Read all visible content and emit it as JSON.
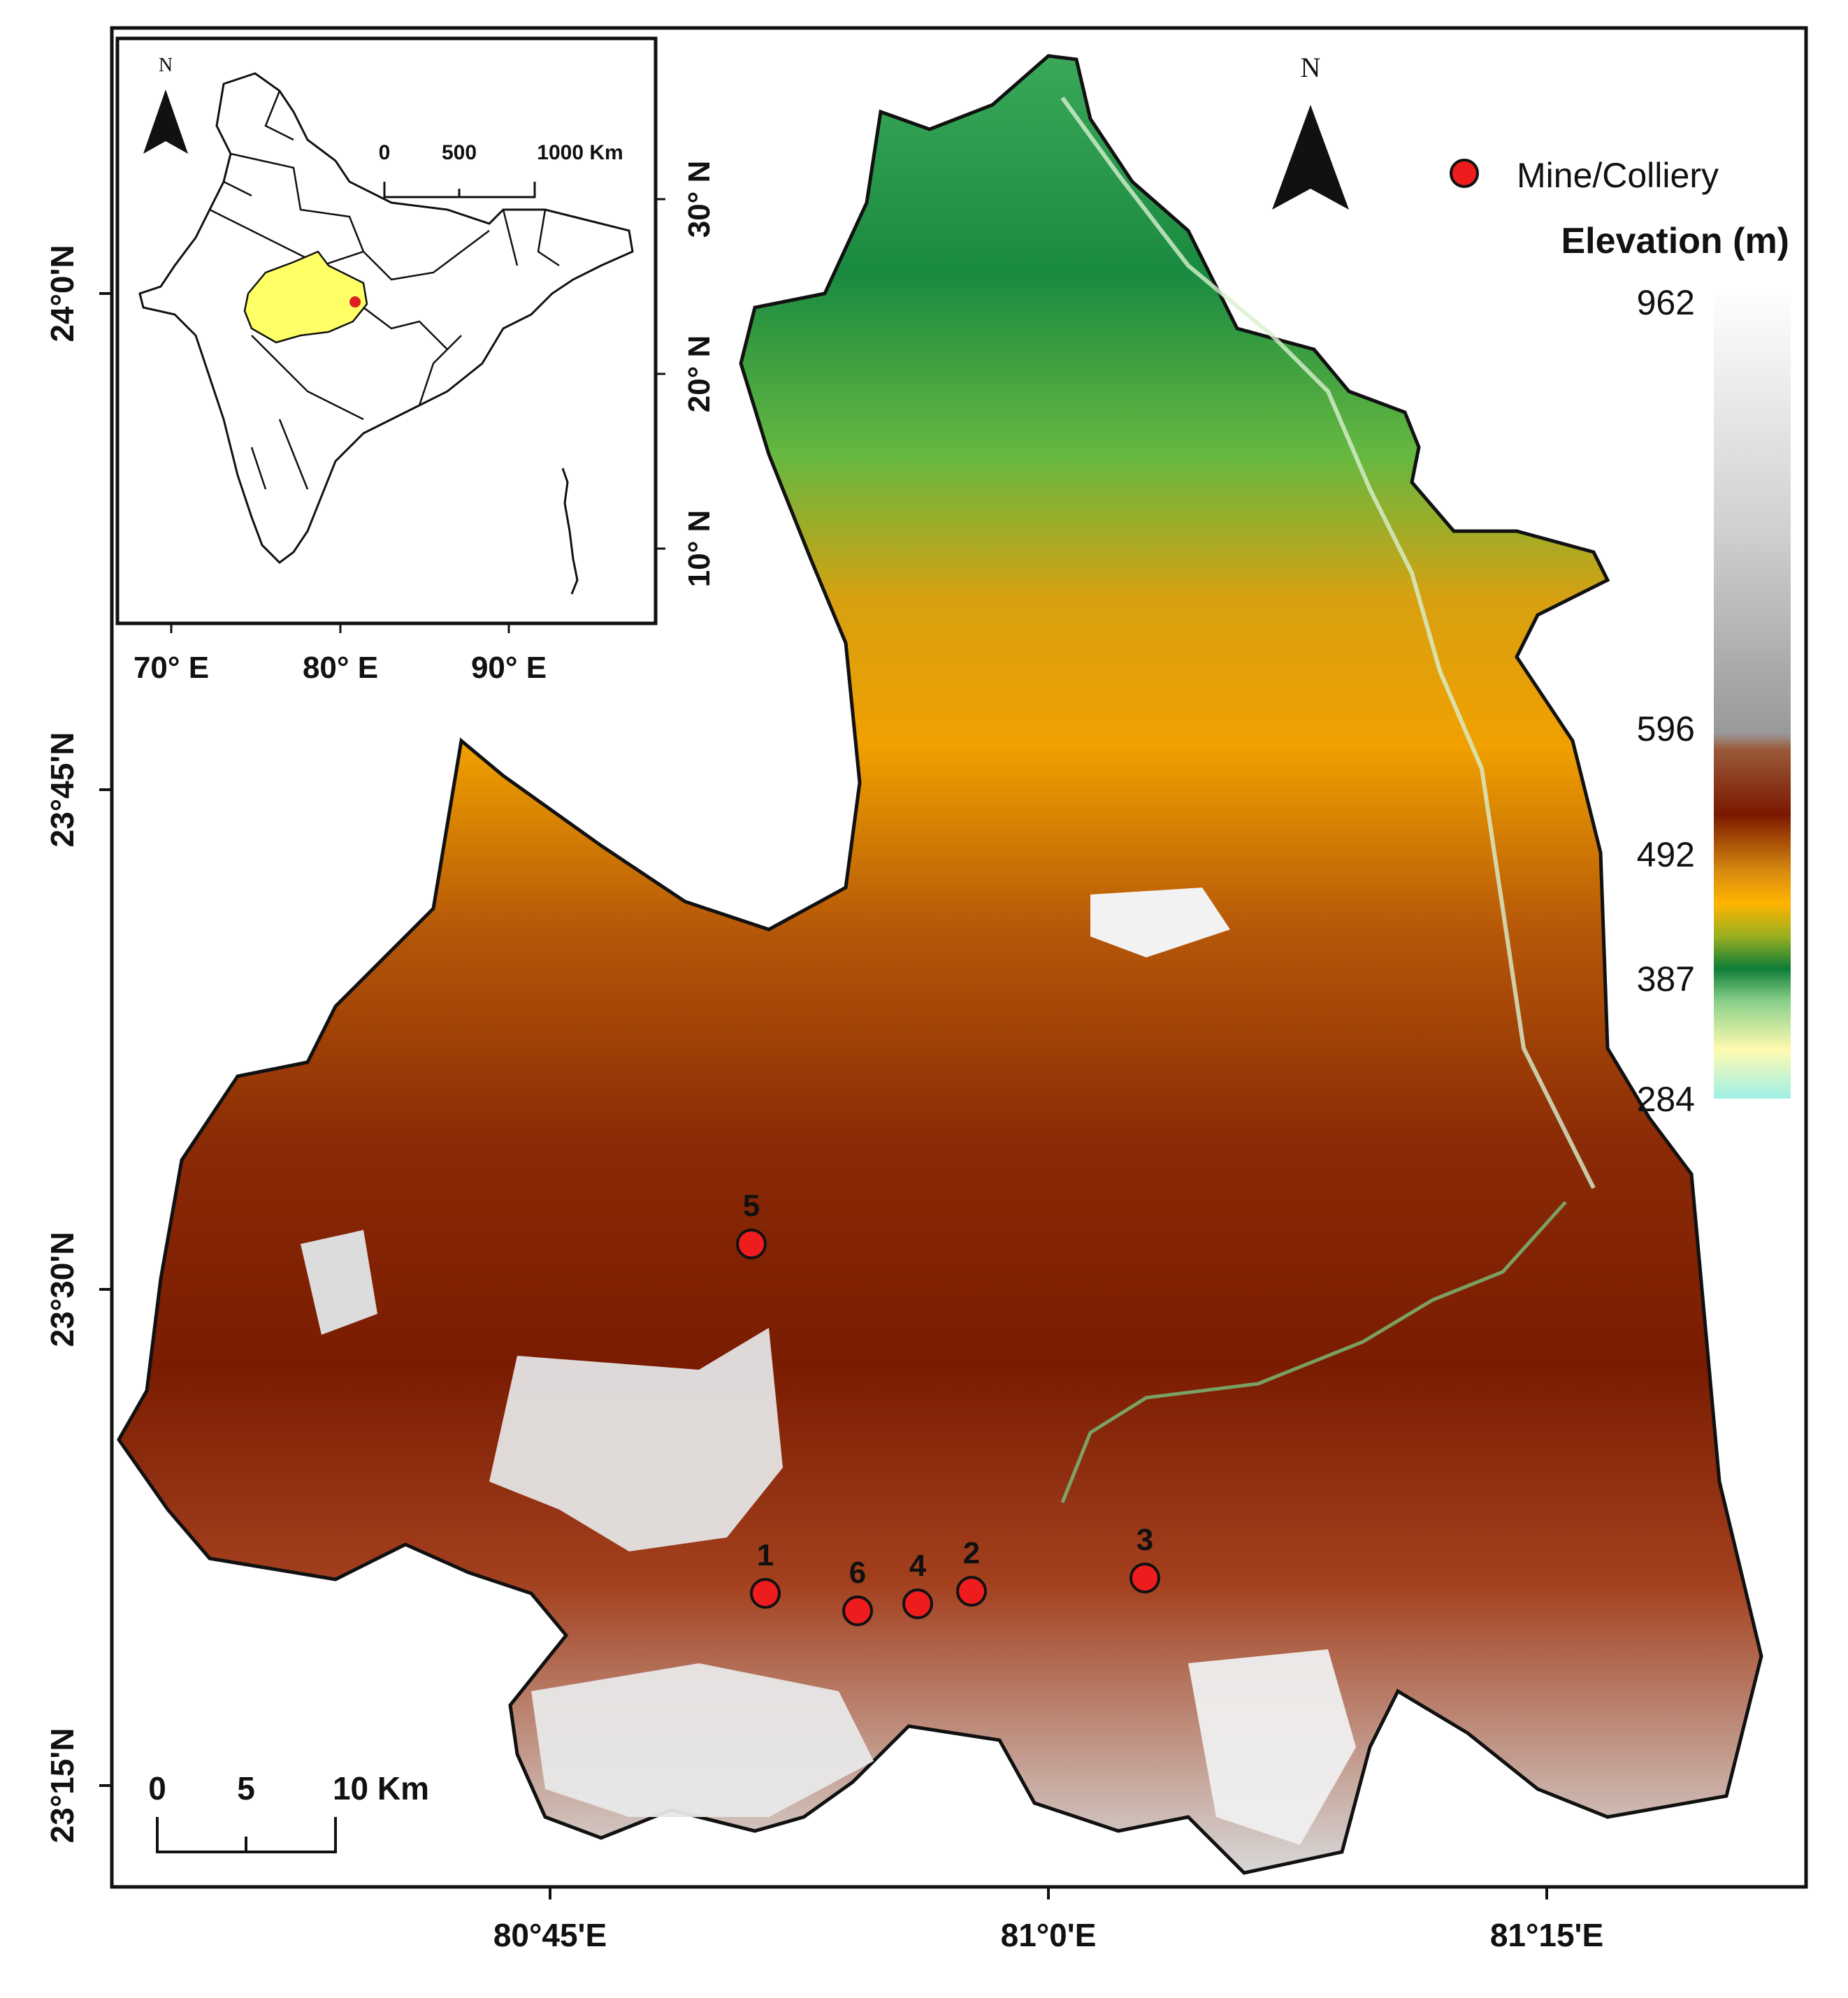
{
  "map": {
    "lon_ticks": [
      "80°45'E",
      "81°0'E",
      "81°15'E"
    ],
    "lat_ticks": [
      "24°0'N",
      "23°45'N",
      "23°30'N",
      "23°15'N"
    ],
    "north_label": "N",
    "legend": {
      "mine_label": "Mine/Colliery",
      "elevation_title": "Elevation (m)",
      "ramp_values": [
        "962",
        "596",
        "492",
        "387",
        "284"
      ],
      "ramp_colors": [
        "#ffffff",
        "#c8c8c8",
        "#9a9a9a",
        "#8a4a2a",
        "#7a1800",
        "#d88a10",
        "#ffb400",
        "#1f9a4a",
        "#0e7d36",
        "#fffab0",
        "#9ff0e8"
      ]
    },
    "mines": [
      {
        "id": "1"
      },
      {
        "id": "6"
      },
      {
        "id": "4"
      },
      {
        "id": "2"
      },
      {
        "id": "3"
      },
      {
        "id": "5"
      }
    ],
    "scale_bar": {
      "labels": [
        "0",
        "5",
        "10 Km"
      ]
    }
  },
  "inset": {
    "north_label": "N",
    "lon_ticks": [
      "70° E",
      "80° E",
      "90° E"
    ],
    "lat_ticks": [
      "30° N",
      "20° N",
      "10° N"
    ],
    "scale_labels": [
      "0",
      "500",
      "1000 Km"
    ],
    "highlight_color": "#ffff66",
    "study_area_color": "#e02020"
  }
}
